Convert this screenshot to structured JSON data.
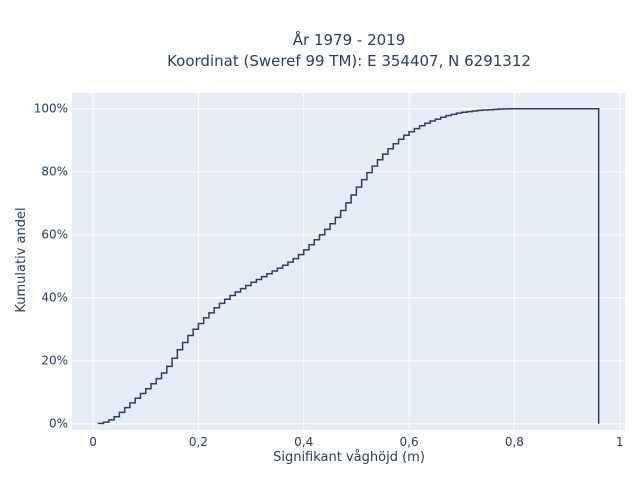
{
  "chart_data": {
    "type": "line",
    "step": true,
    "title_line1": "År 1979 - 2019",
    "title_line2": "Koordinat (Sweref 99 TM): E 354407, N 6291312",
    "xlabel": "Signifikant våghöjd (m)",
    "ylabel": "Kumulativ andel",
    "xlim": [
      -0.04,
      1.01
    ],
    "ylim": [
      -0.02,
      1.05
    ],
    "x_ticks": [
      {
        "value": 0,
        "label": "0"
      },
      {
        "value": 0.2,
        "label": "0,2"
      },
      {
        "value": 0.4,
        "label": "0,4"
      },
      {
        "value": 0.6,
        "label": "0,6"
      },
      {
        "value": 0.8,
        "label": "0,8"
      },
      {
        "value": 1.0,
        "label": "1"
      }
    ],
    "y_ticks": [
      {
        "value": 0,
        "label": "0%"
      },
      {
        "value": 0.2,
        "label": "20%"
      },
      {
        "value": 0.4,
        "label": "40%"
      },
      {
        "value": 0.6,
        "label": "60%"
      },
      {
        "value": 0.8,
        "label": "80%"
      },
      {
        "value": 1.0,
        "label": "100%"
      }
    ],
    "grid": true,
    "series": [
      {
        "color": "#2a3f5f",
        "x": [
          0.01,
          0.02,
          0.03,
          0.04,
          0.05,
          0.06,
          0.07,
          0.08,
          0.09,
          0.1,
          0.11,
          0.12,
          0.13,
          0.14,
          0.15,
          0.16,
          0.17,
          0.18,
          0.19,
          0.2,
          0.21,
          0.22,
          0.23,
          0.24,
          0.25,
          0.26,
          0.27,
          0.28,
          0.29,
          0.3,
          0.31,
          0.32,
          0.33,
          0.34,
          0.35,
          0.36,
          0.37,
          0.38,
          0.39,
          0.4,
          0.41,
          0.42,
          0.43,
          0.44,
          0.45,
          0.46,
          0.47,
          0.48,
          0.49,
          0.5,
          0.51,
          0.52,
          0.53,
          0.54,
          0.55,
          0.56,
          0.57,
          0.58,
          0.59,
          0.6,
          0.61,
          0.62,
          0.63,
          0.64,
          0.65,
          0.66,
          0.67,
          0.68,
          0.69,
          0.7,
          0.71,
          0.72,
          0.73,
          0.74,
          0.75,
          0.76,
          0.77,
          0.78,
          0.79,
          0.8,
          0.82,
          0.84,
          0.86,
          0.88,
          0.9,
          0.92,
          0.94,
          0.96
        ],
        "y": [
          0.001,
          0.005,
          0.012,
          0.022,
          0.036,
          0.051,
          0.066,
          0.081,
          0.096,
          0.111,
          0.127,
          0.143,
          0.161,
          0.182,
          0.208,
          0.235,
          0.258,
          0.28,
          0.3,
          0.318,
          0.336,
          0.352,
          0.368,
          0.382,
          0.395,
          0.407,
          0.418,
          0.429,
          0.439,
          0.449,
          0.458,
          0.467,
          0.476,
          0.485,
          0.494,
          0.503,
          0.513,
          0.524,
          0.537,
          0.552,
          0.568,
          0.584,
          0.6,
          0.617,
          0.635,
          0.655,
          0.677,
          0.701,
          0.726,
          0.751,
          0.775,
          0.797,
          0.818,
          0.838,
          0.856,
          0.873,
          0.889,
          0.903,
          0.916,
          0.927,
          0.937,
          0.946,
          0.954,
          0.961,
          0.967,
          0.973,
          0.978,
          0.982,
          0.986,
          0.989,
          0.991,
          0.993,
          0.995,
          0.996,
          0.997,
          0.998,
          0.999,
          0.9995,
          1.0,
          1.0,
          1.0,
          1.0,
          1.0,
          1.0,
          1.0,
          1.0,
          1.0,
          1.0
        ]
      }
    ]
  }
}
